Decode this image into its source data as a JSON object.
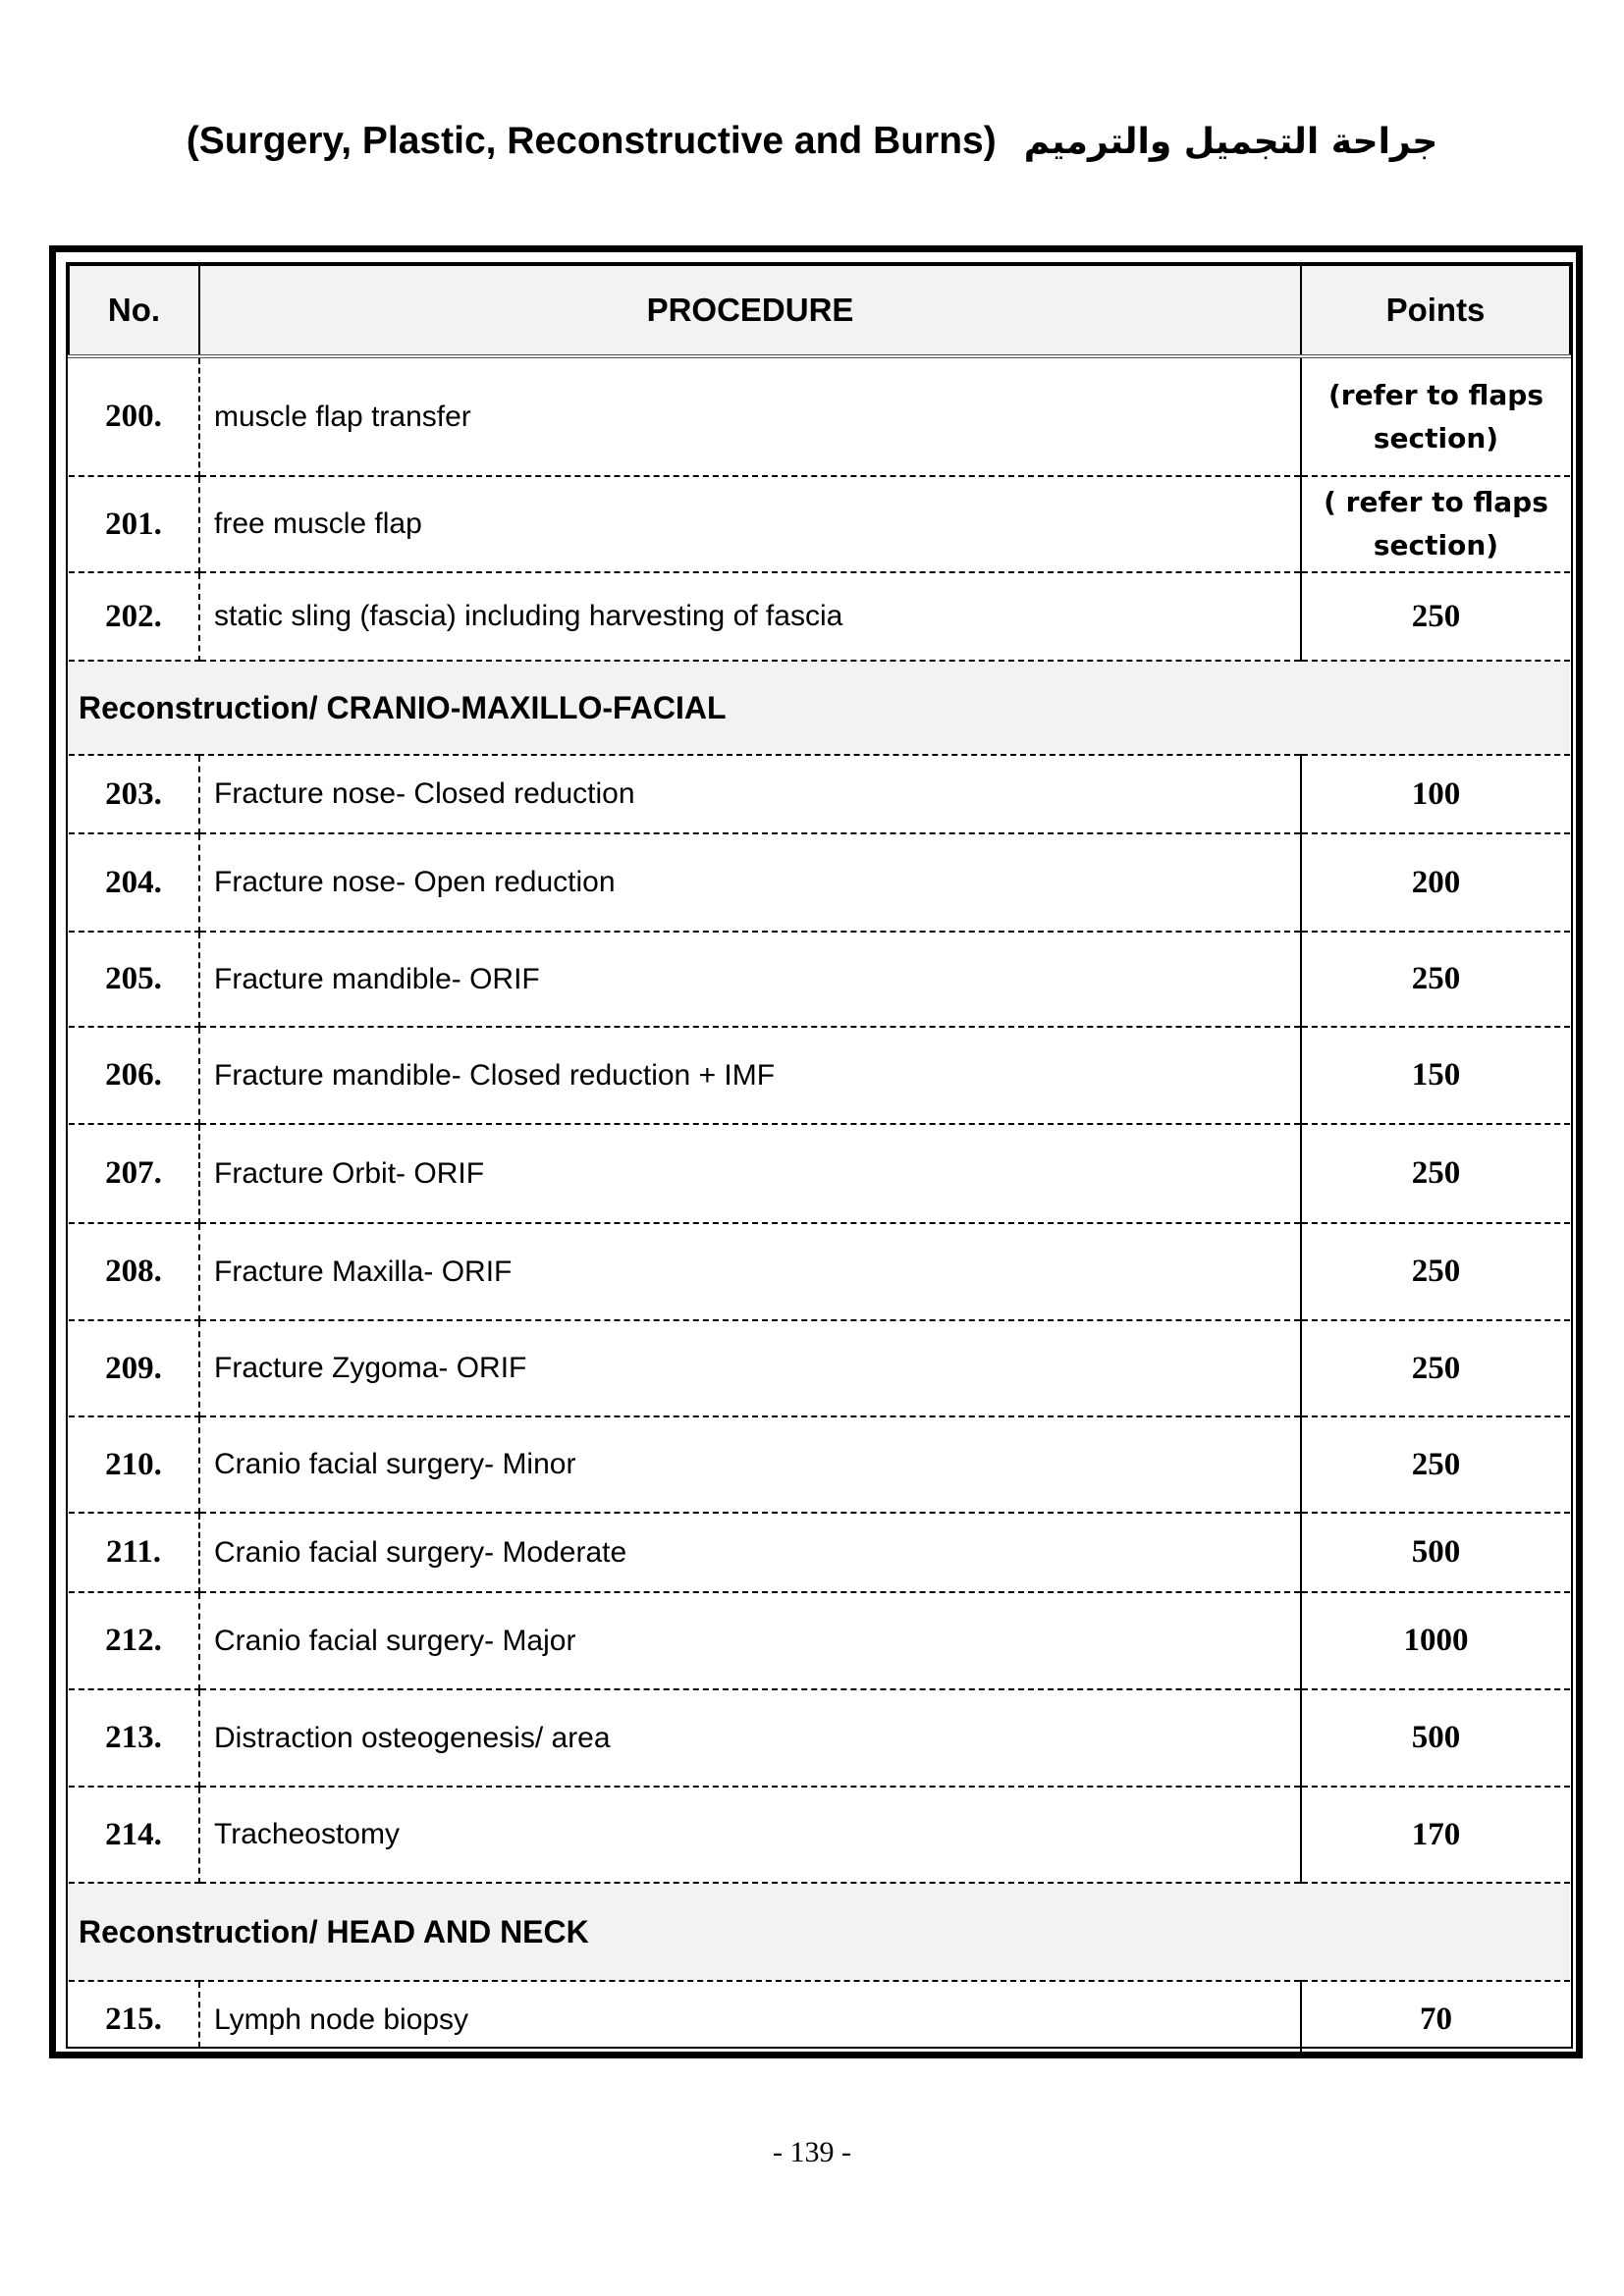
{
  "title": {
    "english": "(Surgery, Plastic, Reconstructive and Burns)",
    "arabic": "جراحة التجميل والترميم"
  },
  "table": {
    "headers": {
      "no": "No.",
      "procedure": "PROCEDURE",
      "points": "Points"
    },
    "rows": [
      {
        "type": "item",
        "no": "200.",
        "procedure": "muscle flap transfer",
        "points": "(refer to flaps section)"
      },
      {
        "type": "item",
        "no": "201.",
        "procedure": "free muscle flap",
        "points": "( refer to flaps section)"
      },
      {
        "type": "item",
        "no": "202.",
        "procedure": "static sling (fascia) including harvesting of fascia",
        "points": "250"
      },
      {
        "type": "section",
        "label": "Reconstruction/ CRANIO-MAXILLO-FACIAL"
      },
      {
        "type": "item",
        "no": "203.",
        "procedure": "Fracture nose- Closed reduction",
        "points": "100"
      },
      {
        "type": "item",
        "no": "204.",
        "procedure": "Fracture nose- Open reduction",
        "points": "200"
      },
      {
        "type": "item",
        "no": "205.",
        "procedure": "Fracture mandible- ORIF",
        "points": "250"
      },
      {
        "type": "item",
        "no": "206.",
        "procedure": "Fracture mandible- Closed reduction + IMF",
        "points": "150"
      },
      {
        "type": "item",
        "no": "207.",
        "procedure": "Fracture Orbit- ORIF",
        "points": "250"
      },
      {
        "type": "item",
        "no": "208.",
        "procedure": "Fracture Maxilla- ORIF",
        "points": "250"
      },
      {
        "type": "item",
        "no": "209.",
        "procedure": "Fracture Zygoma- ORIF",
        "points": "250"
      },
      {
        "type": "item",
        "no": "210.",
        "procedure": "Cranio facial surgery- Minor",
        "points": "250"
      },
      {
        "type": "item",
        "no": "211.",
        "procedure": "Cranio facial surgery- Moderate",
        "points": "500"
      },
      {
        "type": "item",
        "no": "212.",
        "procedure": "Cranio facial surgery- Major",
        "points": "1000"
      },
      {
        "type": "item",
        "no": "213.",
        "procedure": "Distraction osteogenesis/ area",
        "points": "500"
      },
      {
        "type": "item",
        "no": "214.",
        "procedure": "Tracheostomy",
        "points": "170"
      },
      {
        "type": "section",
        "label": "Reconstruction/ HEAD AND NECK"
      },
      {
        "type": "item",
        "no": "215.",
        "procedure": "Lymph node biopsy",
        "points": "70"
      }
    ]
  },
  "page_number": "- 139 -"
}
